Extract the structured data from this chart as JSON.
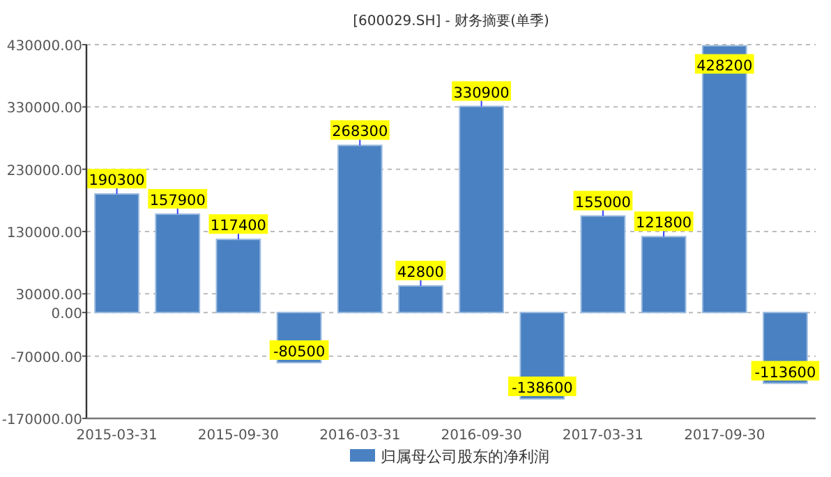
{
  "chart_data": {
    "type": "bar",
    "title": "[600029.SH] - 财务摘要(单季)",
    "categories": [
      "2015-03-31",
      null,
      "2015-09-30",
      null,
      "2016-03-31",
      null,
      "2016-09-30",
      null,
      "2017-03-31",
      null,
      "2017-09-30",
      null
    ],
    "series": [
      {
        "name": "归属母公司股东的净利润",
        "color": "#4a81c2",
        "values": [
          190300,
          157900,
          117400,
          -80500,
          268300,
          42800,
          330900,
          -138600,
          155000,
          121800,
          428200,
          -113600
        ]
      }
    ],
    "ylim": [
      -170000,
      430000
    ],
    "yticks": [
      {
        "value": 430000,
        "label": "430000.00"
      },
      {
        "value": 330000,
        "label": "330000.00"
      },
      {
        "value": 230000,
        "label": "230000.00"
      },
      {
        "value": 130000,
        "label": "130000.00"
      },
      {
        "value": 30000,
        "label": "30000.00"
      },
      {
        "value": 0,
        "label": "0.00"
      },
      {
        "value": -70000,
        "label": "-70000.00"
      },
      {
        "value": -170000,
        "label": "-170000.00"
      }
    ],
    "grid": "y",
    "legend": "bottom",
    "data_labels": true
  }
}
